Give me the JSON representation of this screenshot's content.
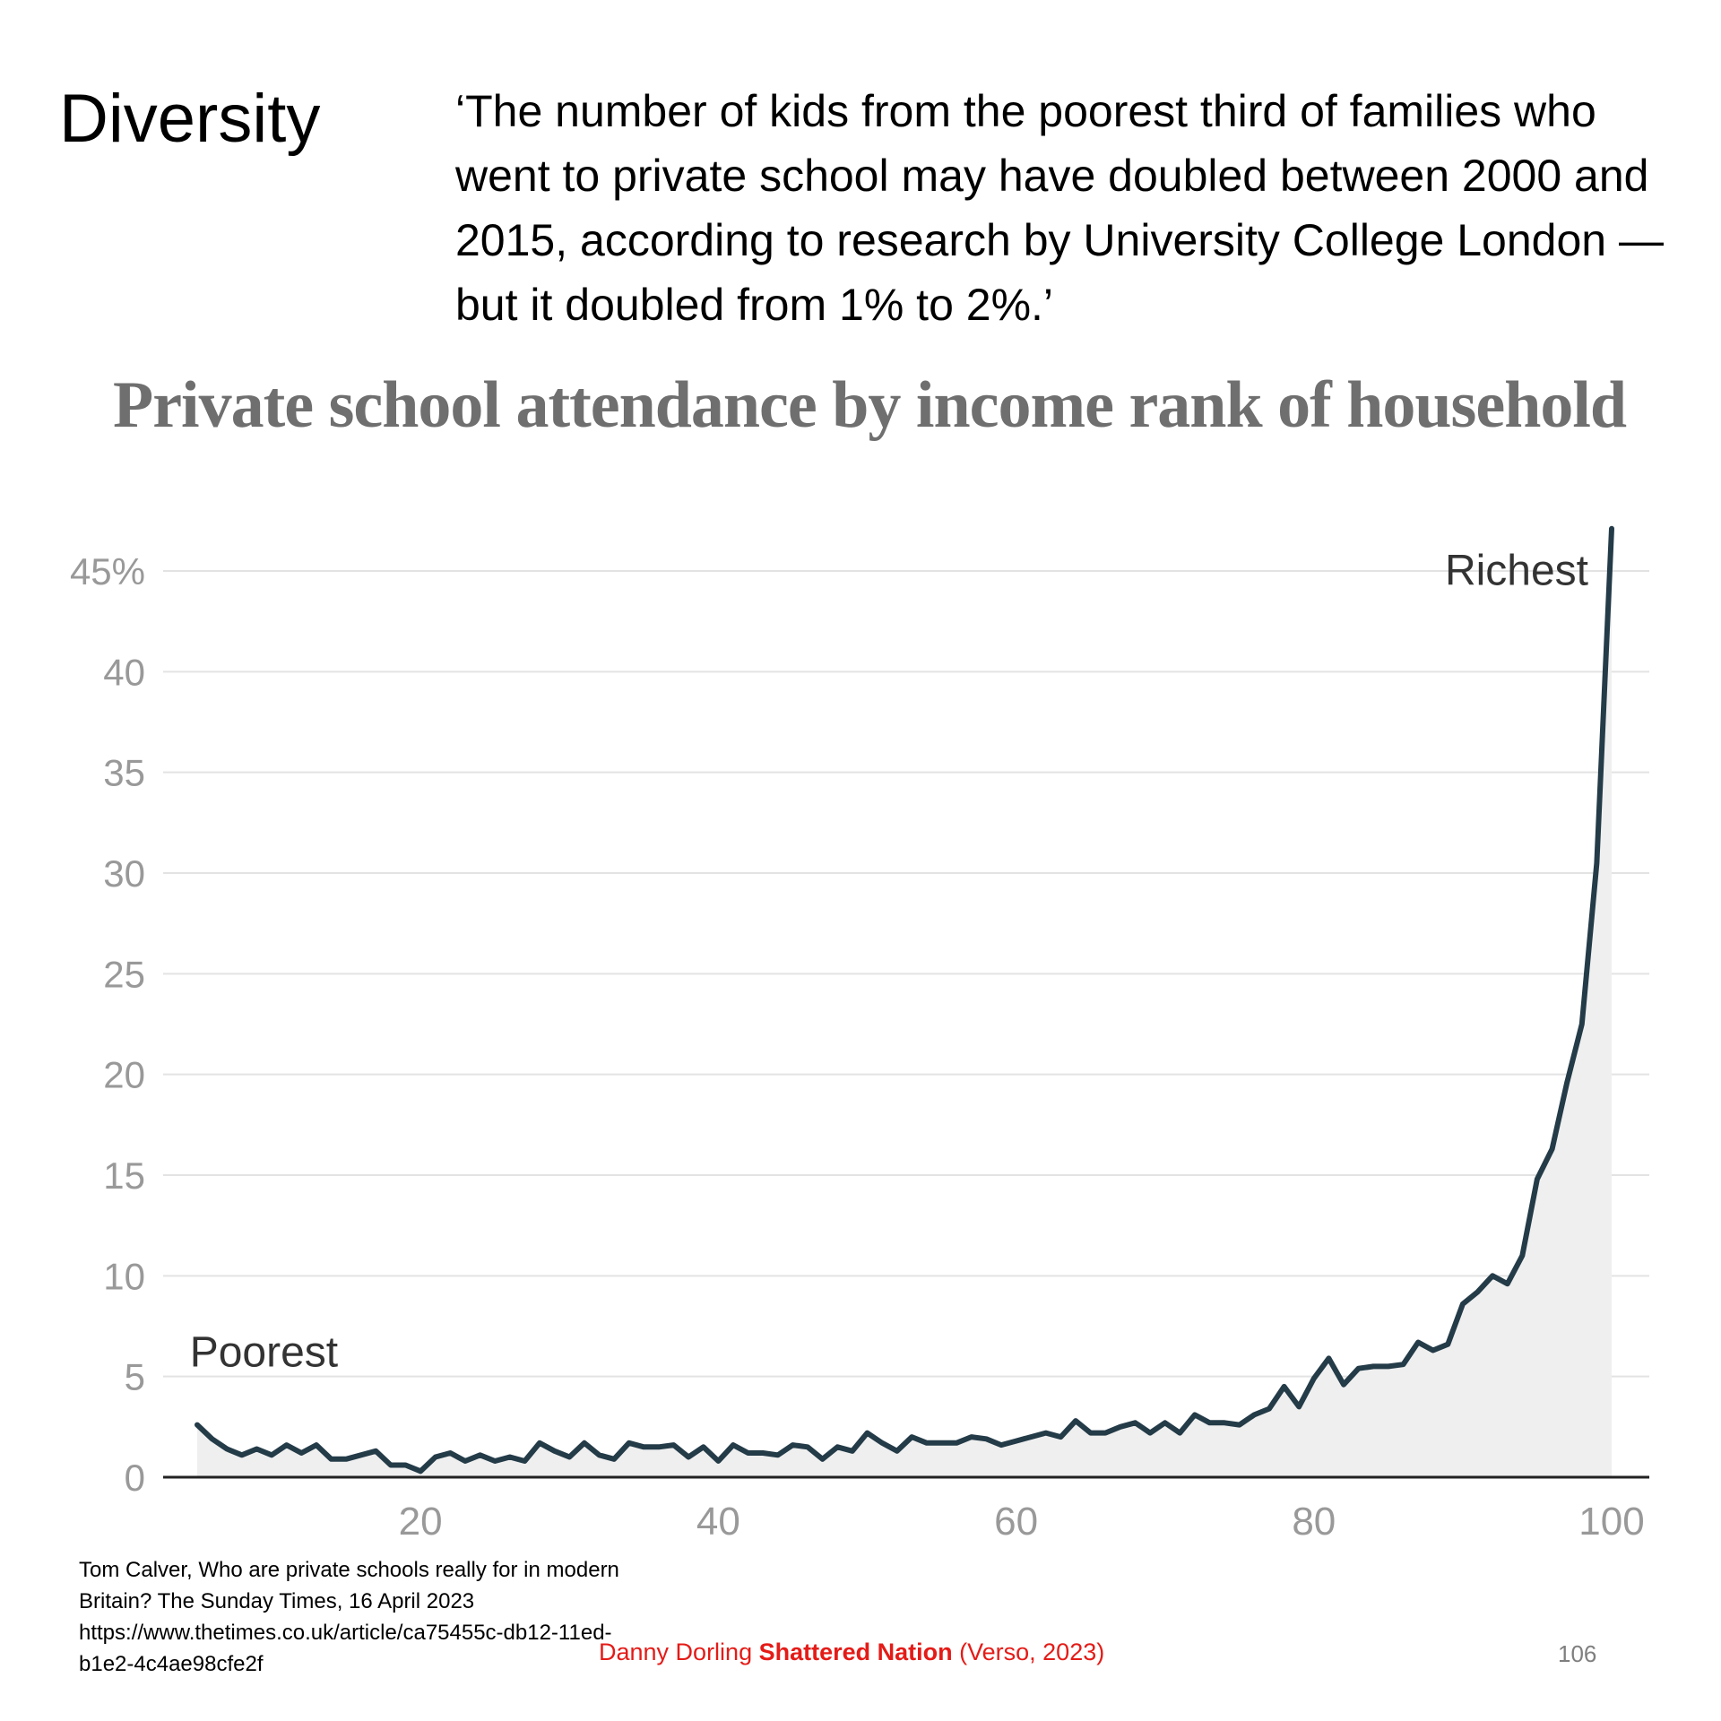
{
  "slide": {
    "title": "Diversity",
    "quote": "‘The number of kids from the poorest third of families who went to private school may have doubled between 2000 and 2015, according to research by University College London — but it doubled from 1% to 2%.’",
    "source": "Tom Calver, Who are private schools really for in modern Britain? The Sunday Times, 16 April 2023 https://www.thetimes.co.uk/article/ca75455c-db12-11ed-b1e2-4c4ae98cfe2f",
    "credit_author": "Danny Dorling ",
    "credit_book": "Shattered Nation",
    "credit_publisher": " (Verso, 2023)",
    "page_number": "106"
  },
  "chart_data": {
    "type": "area",
    "title": "Private school attendance by income rank of household",
    "xlabel": "",
    "ylabel": "",
    "xlim": [
      5,
      100
    ],
    "ylim": [
      0,
      45
    ],
    "x_ticks": [
      20,
      40,
      60,
      80,
      100
    ],
    "y_ticks": [
      {
        "value": 0,
        "label": "0"
      },
      {
        "value": 5,
        "label": "5"
      },
      {
        "value": 10,
        "label": "10"
      },
      {
        "value": 15,
        "label": "15"
      },
      {
        "value": 20,
        "label": "20"
      },
      {
        "value": 25,
        "label": "25"
      },
      {
        "value": 30,
        "label": "30"
      },
      {
        "value": 35,
        "label": "35"
      },
      {
        "value": 40,
        "label": "40"
      },
      {
        "value": 45,
        "label": "45%"
      }
    ],
    "grid": true,
    "line_color": "#243b48",
    "fill_color": "#efefef",
    "annotations": [
      {
        "text": "Poorest",
        "x": 4.5,
        "y": 5.5
      },
      {
        "text": "Richest",
        "x": 88.8,
        "y": 44.3
      }
    ],
    "series": [
      {
        "name": "Private school attendance (%)",
        "x": [
          5,
          6,
          7,
          8,
          9,
          10,
          11,
          12,
          13,
          14,
          15,
          16,
          17,
          18,
          19,
          20,
          21,
          22,
          23,
          24,
          25,
          26,
          27,
          28,
          29,
          30,
          31,
          32,
          33,
          34,
          35,
          36,
          37,
          38,
          39,
          40,
          41,
          42,
          43,
          44,
          45,
          46,
          47,
          48,
          49,
          50,
          51,
          52,
          53,
          54,
          55,
          56,
          57,
          58,
          59,
          60,
          61,
          62,
          63,
          64,
          65,
          66,
          67,
          68,
          69,
          70,
          71,
          72,
          73,
          74,
          75,
          76,
          77,
          78,
          79,
          80,
          81,
          82,
          83,
          84,
          85,
          86,
          87,
          88,
          89,
          90,
          91,
          92,
          93,
          94,
          95,
          96,
          97,
          98,
          99,
          100
        ],
        "values": [
          2.6,
          1.9,
          1.4,
          1.1,
          1.4,
          1.1,
          1.6,
          1.2,
          1.6,
          0.9,
          0.9,
          1.1,
          1.3,
          0.6,
          0.6,
          0.3,
          1.0,
          1.2,
          0.8,
          1.1,
          0.8,
          1.0,
          0.8,
          1.7,
          1.3,
          1.0,
          1.7,
          1.1,
          0.9,
          1.7,
          1.5,
          1.5,
          1.6,
          1.0,
          1.5,
          0.8,
          1.6,
          1.2,
          1.2,
          1.1,
          1.6,
          1.5,
          0.9,
          1.5,
          1.3,
          2.2,
          1.7,
          1.3,
          2.0,
          1.7,
          1.7,
          1.7,
          2.0,
          1.9,
          1.6,
          1.8,
          2.0,
          2.2,
          2.0,
          2.8,
          2.2,
          2.2,
          2.5,
          2.7,
          2.2,
          2.7,
          2.2,
          3.1,
          2.7,
          2.7,
          2.6,
          3.1,
          3.4,
          4.5,
          3.5,
          4.9,
          5.9,
          4.6,
          5.4,
          5.5,
          5.5,
          5.6,
          6.7,
          6.3,
          6.6,
          8.6,
          9.2,
          10.0,
          9.6,
          11.0,
          14.8,
          16.3,
          19.6,
          22.5,
          30.5,
          47.1
        ]
      }
    ]
  }
}
